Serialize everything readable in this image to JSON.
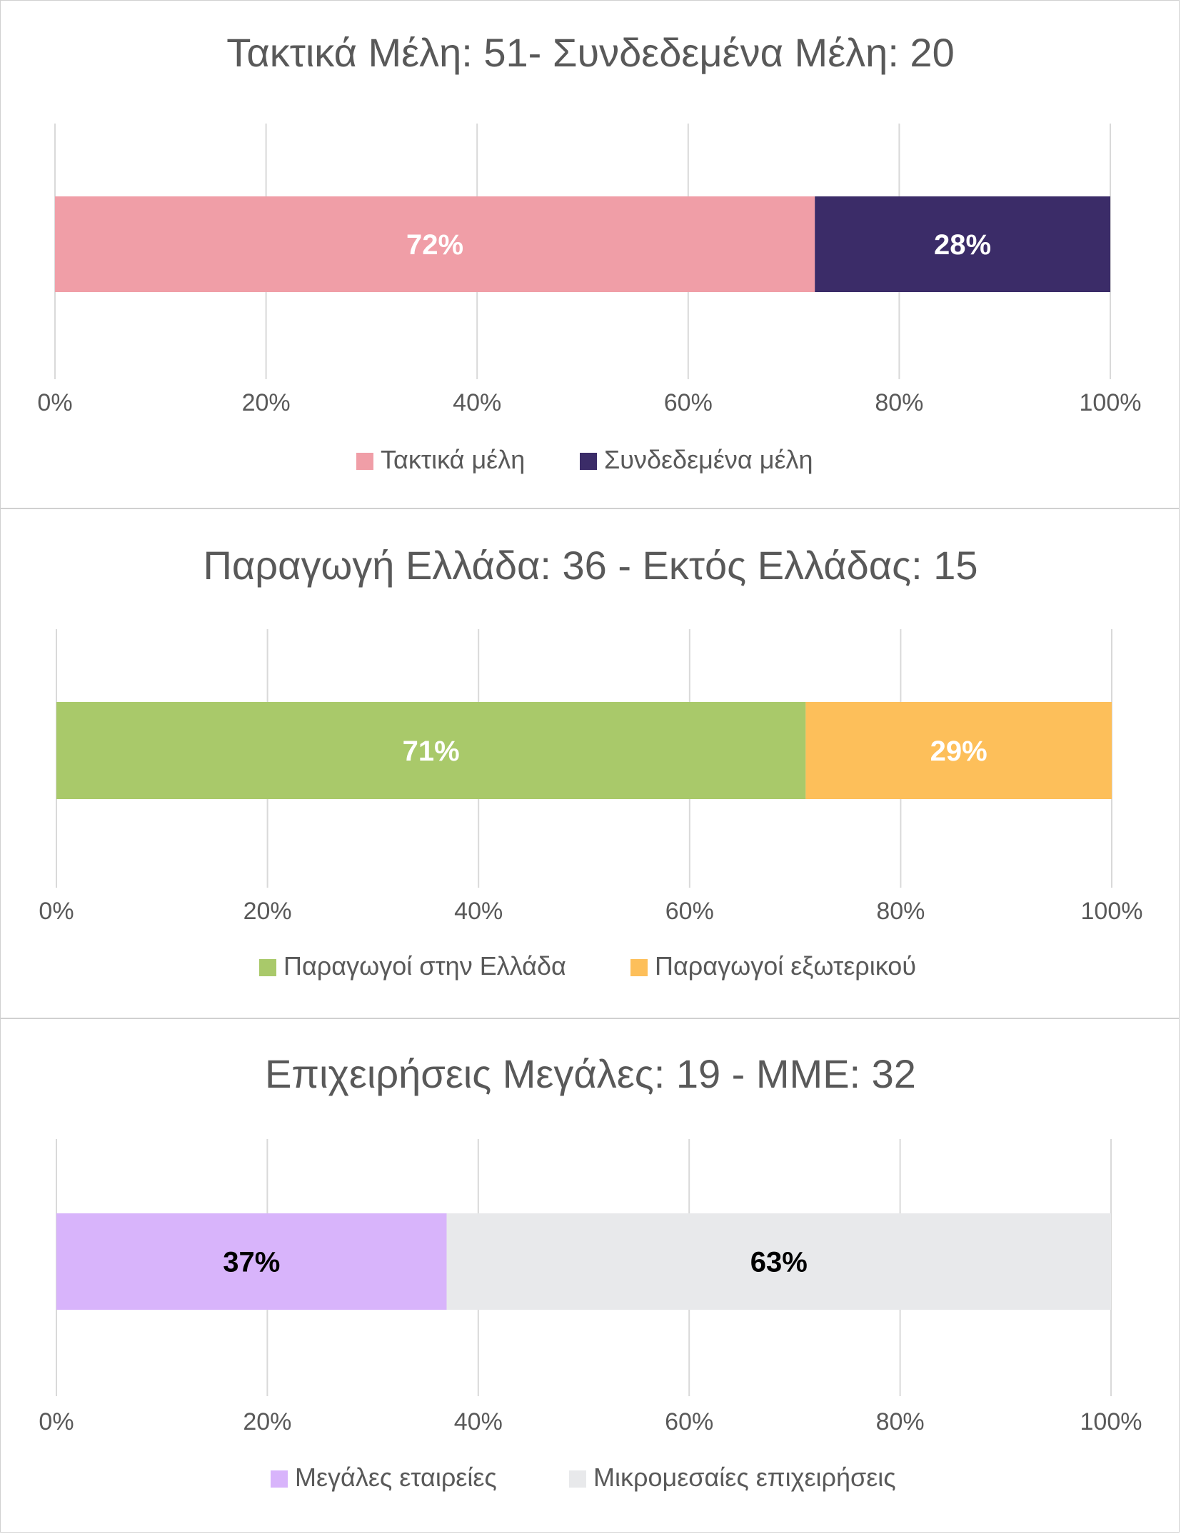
{
  "chart_data": [
    {
      "type": "bar",
      "orientation": "horizontal",
      "stacked": "percent",
      "title": "Τακτικά Μέλη: 51- Συνδεδεμένα Μέλη: 20",
      "xlim": [
        0,
        100
      ],
      "ticks": [
        "0%",
        "20%",
        "40%",
        "60%",
        "80%",
        "100%"
      ],
      "grid": true,
      "legend_position": "bottom",
      "series": [
        {
          "name": "Τακτικά μέλη",
          "value": 72,
          "label": "72%",
          "color": "#f09ea7",
          "label_color": "#ffffff"
        },
        {
          "name": "Συνδεδεμένα μέλη",
          "value": 28,
          "label": "28%",
          "color": "#3b2c68",
          "label_color": "#ffffff"
        }
      ]
    },
    {
      "type": "bar",
      "orientation": "horizontal",
      "stacked": "percent",
      "title": "Παραγωγή  Ελλάδα: 36 - Εκτός Ελλάδας: 15",
      "xlim": [
        0,
        100
      ],
      "ticks": [
        "0%",
        "20%",
        "40%",
        "60%",
        "80%",
        "100%"
      ],
      "grid": true,
      "legend_position": "bottom",
      "series": [
        {
          "name": "Παραγωγοί στην Ελλάδα",
          "value": 71,
          "label": "71%",
          "color": "#a9c96a",
          "label_color": "#ffffff"
        },
        {
          "name": "Παραγωγοί εξωτερικού",
          "value": 29,
          "label": "29%",
          "color": "#fdbf5a",
          "label_color": "#ffffff"
        }
      ]
    },
    {
      "type": "bar",
      "orientation": "horizontal",
      "stacked": "percent",
      "title": "Επιχειρήσεις Μεγάλες: 19 - ΜΜΕ: 32",
      "xlim": [
        0,
        100
      ],
      "ticks": [
        "0%",
        "20%",
        "40%",
        "60%",
        "80%",
        "100%"
      ],
      "grid": true,
      "legend_position": "bottom",
      "series": [
        {
          "name": "Μεγάλες εταιρείες",
          "value": 37,
          "label": "37%",
          "color": "#d8b4fb",
          "label_color": "#000000"
        },
        {
          "name": "Μικρομεσαίες επιχειρήσεις",
          "value": 63,
          "label": "63%",
          "color": "#e8e9eb",
          "label_color": "#000000"
        }
      ]
    }
  ]
}
